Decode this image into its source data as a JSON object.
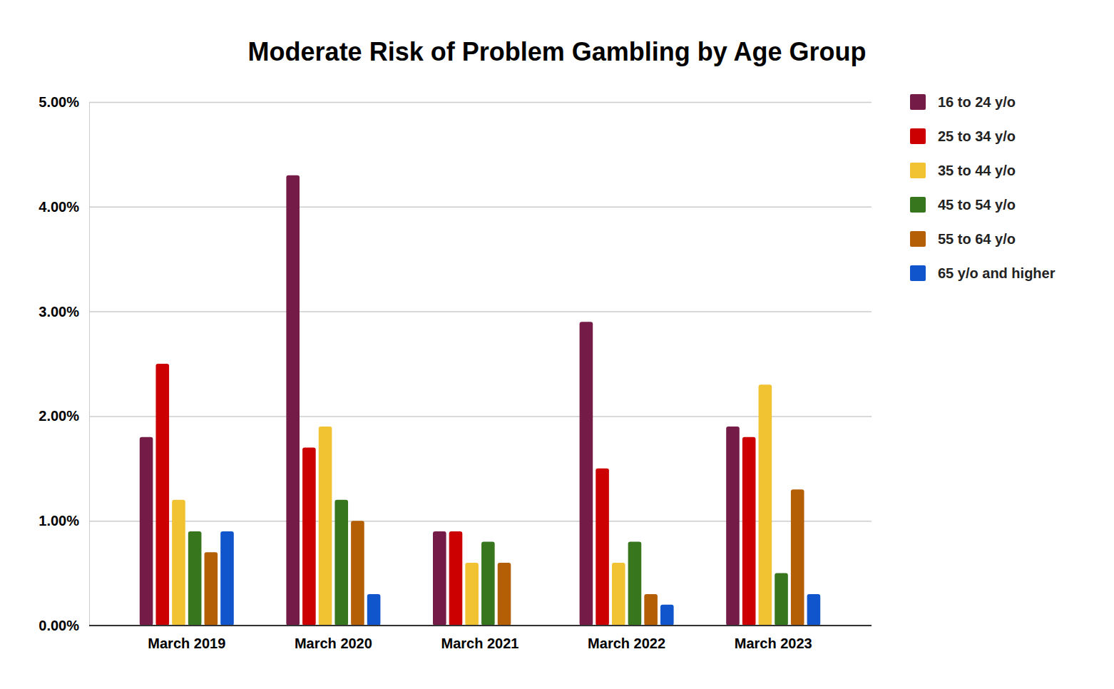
{
  "chart_data": {
    "type": "bar",
    "title": "Moderate Risk of Problem Gambling by Age Group",
    "categories": [
      "March 2019",
      "March 2020",
      "March 2021",
      "March 2022",
      "March 2023"
    ],
    "series": [
      {
        "name": "16 to 24 y/o",
        "color": "#741b47",
        "values": [
          1.8,
          4.3,
          0.9,
          2.9,
          1.9
        ]
      },
      {
        "name": "25 to 34 y/o",
        "color": "#cc0000",
        "values": [
          2.5,
          1.7,
          0.9,
          1.5,
          1.8
        ]
      },
      {
        "name": "35 to 44 y/o",
        "color": "#f1c232",
        "values": [
          1.2,
          1.9,
          0.6,
          0.6,
          2.3
        ]
      },
      {
        "name": "45 to 54 y/o",
        "color": "#38761d",
        "values": [
          0.9,
          1.2,
          0.8,
          0.8,
          0.5
        ]
      },
      {
        "name": "55 to 64 y/o",
        "color": "#b45f06",
        "values": [
          0.7,
          1.0,
          0.6,
          0.3,
          1.3
        ]
      },
      {
        "name": "65 y/o and higher",
        "color": "#1155cc",
        "values": [
          0.9,
          0.3,
          null,
          0.2,
          0.3
        ]
      }
    ],
    "ylim": [
      0,
      5
    ],
    "yticks": [
      {
        "value": 0,
        "label": "0.00%"
      },
      {
        "value": 1,
        "label": "1.00%"
      },
      {
        "value": 2,
        "label": "2.00%"
      },
      {
        "value": 3,
        "label": "3.00%"
      },
      {
        "value": 4,
        "label": "4.00%"
      },
      {
        "value": 5,
        "label": "5.00%"
      }
    ],
    "grid": true,
    "legend": "right"
  }
}
